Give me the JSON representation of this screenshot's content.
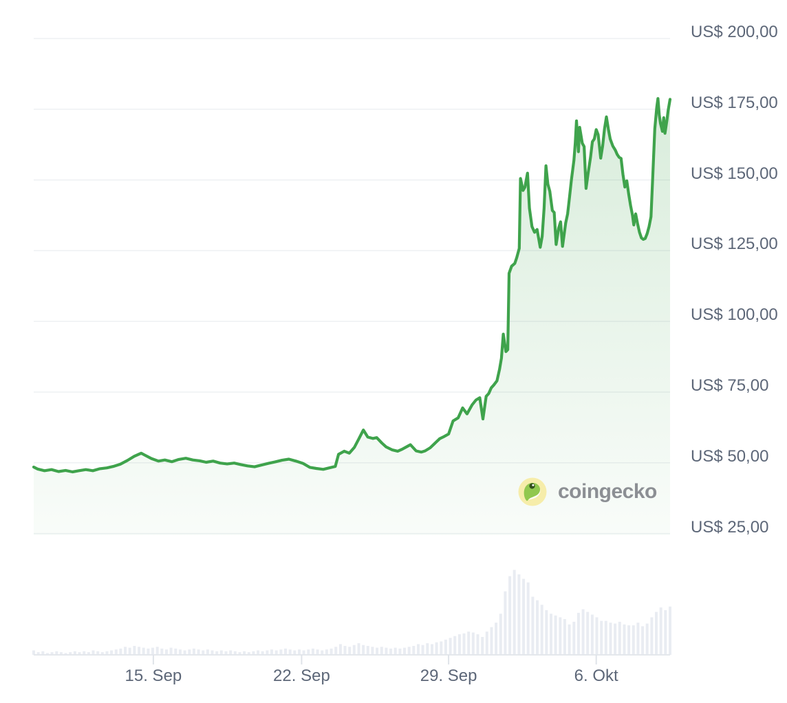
{
  "watermark": {
    "text": "coingecko"
  },
  "colors": {
    "line_green": "#3fa34c",
    "fill_green_top": "rgba(63,163,76,0.20)",
    "fill_green_bottom": "rgba(63,163,76,0.03)",
    "gridline": "#eef0f3",
    "axis_label": "#5d6778",
    "volume_bar": "#e9ecf2",
    "axis_line": "#e4e7ec",
    "tick": "#dfe3e9",
    "watermark_text": "#8c8f94",
    "logo_circle": "#f6edaa",
    "logo_gecko_green": "#91c84f",
    "logo_eye": "#33501d"
  },
  "chart_data": {
    "type": "line",
    "title": "",
    "xlabel": "",
    "ylabel": "",
    "currency_prefix": "US$",
    "grid": "horizontal",
    "legend": "none",
    "y_axis": {
      "side": "right",
      "lim": [
        25,
        200
      ],
      "labels": [
        {
          "value": 200,
          "label": "US$ 200,00"
        },
        {
          "value": 175,
          "label": "US$ 175,00"
        },
        {
          "value": 150,
          "label": "US$ 150,00"
        },
        {
          "value": 125,
          "label": "US$ 125,00"
        },
        {
          "value": 100,
          "label": "US$ 100,00"
        },
        {
          "value": 75,
          "label": "US$ 75,00"
        },
        {
          "value": 50,
          "label": "US$ 50,00"
        },
        {
          "value": 25,
          "label": "US$ 25,00"
        }
      ]
    },
    "x_axis": {
      "ticks": [
        {
          "label": "15. Sep",
          "pos_pct": 18.8
        },
        {
          "label": "22. Sep",
          "pos_pct": 42.1
        },
        {
          "label": "29. Sep",
          "pos_pct": 65.2
        },
        {
          "label": "6. Okt",
          "pos_pct": 88.4
        }
      ]
    },
    "price_series": {
      "name": "price-usd",
      "points_pct_value": [
        [
          0,
          48.5
        ],
        [
          0.6,
          47.8
        ],
        [
          1.7,
          47.2
        ],
        [
          2.8,
          47.6
        ],
        [
          3.9,
          46.9
        ],
        [
          5,
          47.3
        ],
        [
          6.1,
          46.8
        ],
        [
          7.1,
          47.2
        ],
        [
          8.2,
          47.6
        ],
        [
          9.3,
          47.2
        ],
        [
          10.4,
          47.9
        ],
        [
          11.5,
          48.2
        ],
        [
          12.5,
          48.7
        ],
        [
          13.6,
          49.5
        ],
        [
          14.7,
          50.8
        ],
        [
          15.8,
          52.3
        ],
        [
          16.9,
          53.4
        ],
        [
          17.4,
          52.8
        ],
        [
          18.5,
          51.5
        ],
        [
          19.6,
          50.6
        ],
        [
          20.6,
          51.0
        ],
        [
          21.7,
          50.4
        ],
        [
          22.8,
          51.2
        ],
        [
          23.9,
          51.6
        ],
        [
          25,
          51.0
        ],
        [
          26.1,
          50.7
        ],
        [
          27.1,
          50.2
        ],
        [
          28.2,
          50.6
        ],
        [
          29.3,
          49.9
        ],
        [
          30.4,
          49.6
        ],
        [
          31.5,
          49.9
        ],
        [
          32.5,
          49.4
        ],
        [
          33.6,
          48.9
        ],
        [
          34.7,
          48.6
        ],
        [
          35.8,
          49.2
        ],
        [
          36.9,
          49.8
        ],
        [
          37.9,
          50.3
        ],
        [
          39,
          50.9
        ],
        [
          40.1,
          51.3
        ],
        [
          41.2,
          50.6
        ],
        [
          42.3,
          49.8
        ],
        [
          43.4,
          48.4
        ],
        [
          44.4,
          48.0
        ],
        [
          45.5,
          47.7
        ],
        [
          46.6,
          48.3
        ],
        [
          47.4,
          48.7
        ],
        [
          47.9,
          53.0
        ],
        [
          48.8,
          54.1
        ],
        [
          49.6,
          53.4
        ],
        [
          50.4,
          55.5
        ],
        [
          51.1,
          58.5
        ],
        [
          51.8,
          61.6
        ],
        [
          52.5,
          59.1
        ],
        [
          53.3,
          58.6
        ],
        [
          53.9,
          58.9
        ],
        [
          54.7,
          57.0
        ],
        [
          55.4,
          55.6
        ],
        [
          56.3,
          54.6
        ],
        [
          57.2,
          54.1
        ],
        [
          57.9,
          54.8
        ],
        [
          58.7,
          55.8
        ],
        [
          59.2,
          56.4
        ],
        [
          60.1,
          54.2
        ],
        [
          60.9,
          53.8
        ],
        [
          61.5,
          54.2
        ],
        [
          62.3,
          55.3
        ],
        [
          63,
          56.8
        ],
        [
          63.8,
          58.5
        ],
        [
          64.5,
          59.3
        ],
        [
          65.2,
          60.2
        ],
        [
          65.9,
          64.8
        ],
        [
          66.7,
          65.9
        ],
        [
          67.4,
          69.4
        ],
        [
          68.1,
          67.3
        ],
        [
          68.9,
          70.5
        ],
        [
          69.5,
          72.2
        ],
        [
          70.1,
          73.0
        ],
        [
          70.6,
          65.5
        ],
        [
          71.1,
          73.5
        ],
        [
          71.5,
          74.5
        ],
        [
          71.9,
          76.5
        ],
        [
          72.3,
          77.5
        ],
        [
          72.8,
          79.0
        ],
        [
          73.2,
          83.0
        ],
        [
          73.5,
          87.0
        ],
        [
          73.8,
          95.5
        ],
        [
          74.2,
          89.3
        ],
        [
          74.5,
          90.0
        ],
        [
          74.7,
          117.0
        ],
        [
          75.1,
          119.5
        ],
        [
          75.6,
          120.5
        ],
        [
          75.9,
          122.5
        ],
        [
          76.3,
          125.8
        ],
        [
          76.5,
          150.5
        ],
        [
          76.9,
          146.3
        ],
        [
          77.2,
          147.5
        ],
        [
          77.6,
          152.4
        ],
        [
          77.9,
          140.0
        ],
        [
          78.3,
          133.5
        ],
        [
          78.7,
          131.5
        ],
        [
          79.1,
          132.5
        ],
        [
          79.6,
          126.2
        ],
        [
          79.9,
          130.0
        ],
        [
          80.2,
          140.0
        ],
        [
          80.5,
          155.0
        ],
        [
          80.8,
          148.5
        ],
        [
          81.1,
          146.0
        ],
        [
          81.5,
          139.2
        ],
        [
          81.8,
          138.5
        ],
        [
          82.1,
          127.2
        ],
        [
          82.5,
          133.0
        ],
        [
          82.8,
          135.2
        ],
        [
          83.1,
          126.5
        ],
        [
          83.6,
          134.8
        ],
        [
          83.9,
          138.0
        ],
        [
          84.2,
          144.0
        ],
        [
          84.5,
          150.0
        ],
        [
          84.9,
          157.0
        ],
        [
          85.1,
          163.0
        ],
        [
          85.3,
          170.9
        ],
        [
          85.6,
          160.0
        ],
        [
          85.8,
          168.6
        ],
        [
          86.2,
          163.0
        ],
        [
          86.5,
          161.8
        ],
        [
          86.8,
          147.0
        ],
        [
          87.1,
          152.0
        ],
        [
          87.5,
          158.0
        ],
        [
          87.8,
          163.5
        ],
        [
          88.1,
          164.5
        ],
        [
          88.4,
          167.8
        ],
        [
          88.7,
          166.0
        ],
        [
          89.1,
          157.7
        ],
        [
          89.4,
          162.0
        ],
        [
          89.7,
          168.0
        ],
        [
          90,
          172.3
        ],
        [
          90.3,
          168.0
        ],
        [
          90.6,
          164.5
        ],
        [
          91,
          162.0
        ],
        [
          91.4,
          160.5
        ],
        [
          91.7,
          159.0
        ],
        [
          92,
          158.0
        ],
        [
          92.3,
          157.6
        ],
        [
          92.6,
          152.0
        ],
        [
          92.9,
          147.5
        ],
        [
          93.2,
          149.7
        ],
        [
          93.5,
          145.0
        ],
        [
          93.8,
          141.0
        ],
        [
          94.1,
          137.5
        ],
        [
          94.3,
          134.1
        ],
        [
          94.6,
          138.0
        ],
        [
          94.9,
          134.5
        ],
        [
          95.2,
          131.5
        ],
        [
          95.5,
          129.5
        ],
        [
          95.8,
          129.0
        ],
        [
          96.1,
          129.3
        ],
        [
          96.4,
          131.0
        ],
        [
          96.7,
          133.5
        ],
        [
          97,
          137.0
        ],
        [
          97.3,
          152.0
        ],
        [
          97.6,
          168.0
        ],
        [
          97.9,
          175.5
        ],
        [
          98.1,
          178.8
        ],
        [
          98.3,
          173.0
        ],
        [
          98.5,
          170.0
        ],
        [
          98.8,
          167.2
        ],
        [
          99,
          172.0
        ],
        [
          99.2,
          166.5
        ],
        [
          99.5,
          171.0
        ],
        [
          99.7,
          174.5
        ],
        [
          100,
          178.5
        ]
      ]
    },
    "volume_series": {
      "name": "volume",
      "type": "bar",
      "values_rel": [
        5,
        3,
        4,
        2,
        3,
        4,
        3,
        2,
        3,
        4,
        3,
        4,
        3,
        5,
        4,
        3,
        4,
        5,
        6,
        7,
        9,
        8,
        10,
        9,
        8,
        7,
        8,
        9,
        7,
        6,
        8,
        7,
        6,
        5,
        6,
        7,
        6,
        5,
        6,
        5,
        4,
        5,
        4,
        5,
        4,
        3,
        4,
        3,
        4,
        5,
        4,
        5,
        6,
        5,
        6,
        7,
        6,
        5,
        6,
        5,
        6,
        7,
        6,
        5,
        6,
        7,
        9,
        12,
        10,
        9,
        11,
        13,
        11,
        10,
        9,
        8,
        9,
        8,
        7,
        8,
        7,
        8,
        9,
        10,
        12,
        11,
        13,
        12,
        14,
        15,
        17,
        19,
        21,
        23,
        24,
        26,
        25,
        23,
        20,
        26,
        31,
        36,
        46,
        71,
        88,
        95,
        90,
        85,
        81,
        65,
        61,
        56,
        50,
        46,
        44,
        42,
        40,
        34,
        37,
        47,
        51,
        48,
        45,
        42,
        38,
        38,
        36,
        35,
        37,
        34,
        33,
        33,
        36,
        32,
        35,
        42,
        48,
        53,
        50,
        54
      ]
    }
  }
}
